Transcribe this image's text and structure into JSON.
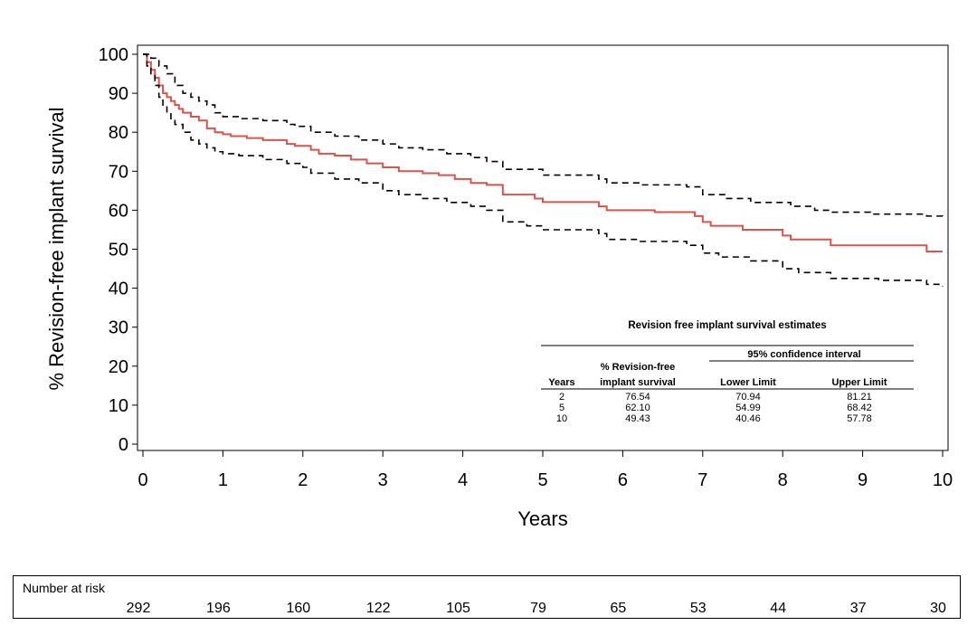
{
  "chart_data": {
    "type": "line",
    "title": "",
    "xlabel": "Years",
    "ylabel": "% Revision-free implant survival",
    "xlim": [
      0,
      10
    ],
    "ylim": [
      0,
      100
    ],
    "x_ticks": [
      "0",
      "1",
      "2",
      "3",
      "4",
      "5",
      "6",
      "7",
      "8",
      "9",
      "10"
    ],
    "y_ticks": [
      "0",
      "10",
      "20",
      "30",
      "40",
      "50",
      "60",
      "70",
      "80",
      "90",
      "100"
    ],
    "grid": false,
    "colors": {
      "estimate": "#d9534f",
      "ci": "#000000"
    },
    "series": [
      {
        "role": "estimate",
        "points": [
          [
            0,
            100
          ],
          [
            0.05,
            98
          ],
          [
            0.1,
            96
          ],
          [
            0.15,
            94
          ],
          [
            0.2,
            92
          ],
          [
            0.25,
            90
          ],
          [
            0.3,
            89
          ],
          [
            0.35,
            88
          ],
          [
            0.4,
            87
          ],
          [
            0.45,
            86
          ],
          [
            0.5,
            85
          ],
          [
            0.6,
            84
          ],
          [
            0.7,
            83
          ],
          [
            0.8,
            81
          ],
          [
            0.9,
            80
          ],
          [
            1.0,
            79.5
          ],
          [
            1.1,
            79
          ],
          [
            1.3,
            78.5
          ],
          [
            1.5,
            78
          ],
          [
            1.8,
            77
          ],
          [
            1.9,
            76.5
          ],
          [
            2.1,
            75.5
          ],
          [
            2.2,
            74.5
          ],
          [
            2.4,
            74
          ],
          [
            2.6,
            73
          ],
          [
            2.8,
            72
          ],
          [
            3.0,
            71
          ],
          [
            3.2,
            70
          ],
          [
            3.5,
            69.5
          ],
          [
            3.7,
            69
          ],
          [
            3.9,
            68
          ],
          [
            4.1,
            67
          ],
          [
            4.3,
            66.5
          ],
          [
            4.5,
            64
          ],
          [
            4.9,
            63
          ],
          [
            5.0,
            62.1
          ],
          [
            5.7,
            61
          ],
          [
            5.8,
            60
          ],
          [
            6.4,
            59.5
          ],
          [
            6.9,
            58.5
          ],
          [
            7.0,
            57
          ],
          [
            7.1,
            56
          ],
          [
            7.5,
            55
          ],
          [
            8.0,
            53.5
          ],
          [
            8.1,
            52.5
          ],
          [
            8.6,
            51
          ],
          [
            9.4,
            51
          ],
          [
            9.8,
            49.43
          ],
          [
            10,
            49.43
          ]
        ]
      },
      {
        "role": "ci-upper",
        "points": [
          [
            0,
            100
          ],
          [
            0.1,
            99
          ],
          [
            0.2,
            97
          ],
          [
            0.3,
            95
          ],
          [
            0.4,
            92
          ],
          [
            0.5,
            90
          ],
          [
            0.6,
            89
          ],
          [
            0.7,
            88
          ],
          [
            0.8,
            87
          ],
          [
            0.9,
            85
          ],
          [
            1.0,
            84
          ],
          [
            1.2,
            83.5
          ],
          [
            1.5,
            83
          ],
          [
            1.8,
            82
          ],
          [
            1.9,
            81.5
          ],
          [
            2.1,
            80
          ],
          [
            2.4,
            79
          ],
          [
            2.7,
            78
          ],
          [
            3.0,
            77
          ],
          [
            3.2,
            76
          ],
          [
            3.5,
            75.5
          ],
          [
            3.8,
            74.5
          ],
          [
            4.1,
            73.5
          ],
          [
            4.3,
            72.5
          ],
          [
            4.5,
            70.5
          ],
          [
            5.0,
            69
          ],
          [
            5.7,
            68
          ],
          [
            5.8,
            67
          ],
          [
            6.2,
            66.5
          ],
          [
            6.8,
            66
          ],
          [
            7.0,
            64
          ],
          [
            7.3,
            63
          ],
          [
            7.6,
            62
          ],
          [
            8.1,
            61
          ],
          [
            8.4,
            60
          ],
          [
            8.6,
            59.5
          ],
          [
            9.1,
            59
          ],
          [
            9.8,
            58.5
          ],
          [
            10,
            57.78
          ]
        ]
      },
      {
        "role": "ci-lower",
        "points": [
          [
            0,
            100
          ],
          [
            0.05,
            97
          ],
          [
            0.1,
            95
          ],
          [
            0.15,
            92
          ],
          [
            0.2,
            89
          ],
          [
            0.25,
            87
          ],
          [
            0.3,
            85
          ],
          [
            0.35,
            83
          ],
          [
            0.4,
            82
          ],
          [
            0.5,
            80
          ],
          [
            0.6,
            78
          ],
          [
            0.7,
            77
          ],
          [
            0.8,
            76
          ],
          [
            0.9,
            75
          ],
          [
            1.0,
            74.5
          ],
          [
            1.2,
            74
          ],
          [
            1.5,
            73
          ],
          [
            1.8,
            72
          ],
          [
            2.0,
            71
          ],
          [
            2.1,
            69.5
          ],
          [
            2.4,
            68
          ],
          [
            2.7,
            67
          ],
          [
            3.0,
            65
          ],
          [
            3.2,
            64
          ],
          [
            3.5,
            63
          ],
          [
            3.8,
            62
          ],
          [
            4.1,
            61
          ],
          [
            4.3,
            60
          ],
          [
            4.5,
            57
          ],
          [
            4.8,
            56
          ],
          [
            5.0,
            54.99
          ],
          [
            5.7,
            54
          ],
          [
            5.8,
            52.5
          ],
          [
            6.2,
            52
          ],
          [
            6.8,
            51
          ],
          [
            7.0,
            49
          ],
          [
            7.2,
            48
          ],
          [
            7.6,
            47
          ],
          [
            8.0,
            45
          ],
          [
            8.2,
            44
          ],
          [
            8.6,
            42.5
          ],
          [
            9.2,
            42
          ],
          [
            9.8,
            41
          ],
          [
            10,
            40.46
          ]
        ]
      }
    ],
    "table": {
      "title": "Revision free implant survival estimates",
      "ci_header": "95% confidence interval",
      "col_years": "Years",
      "col_survival_1": "% Revision-free",
      "col_survival_2": "implant survival",
      "col_lower": "Lower Limit",
      "col_upper": "Upper Limit",
      "rows": [
        {
          "years": "2",
          "survival": "76.54",
          "lower": "70.94",
          "upper": "81.21"
        },
        {
          "years": "5",
          "survival": "62.10",
          "lower": "54.99",
          "upper": "68.42"
        },
        {
          "years": "10",
          "survival": "49.43",
          "lower": "40.46",
          "upper": "57.78"
        }
      ]
    },
    "risk": {
      "label": "Number at risk",
      "values": [
        "292",
        "196",
        "160",
        "122",
        "105",
        "79",
        "65",
        "53",
        "44",
        "37",
        "30"
      ]
    }
  }
}
